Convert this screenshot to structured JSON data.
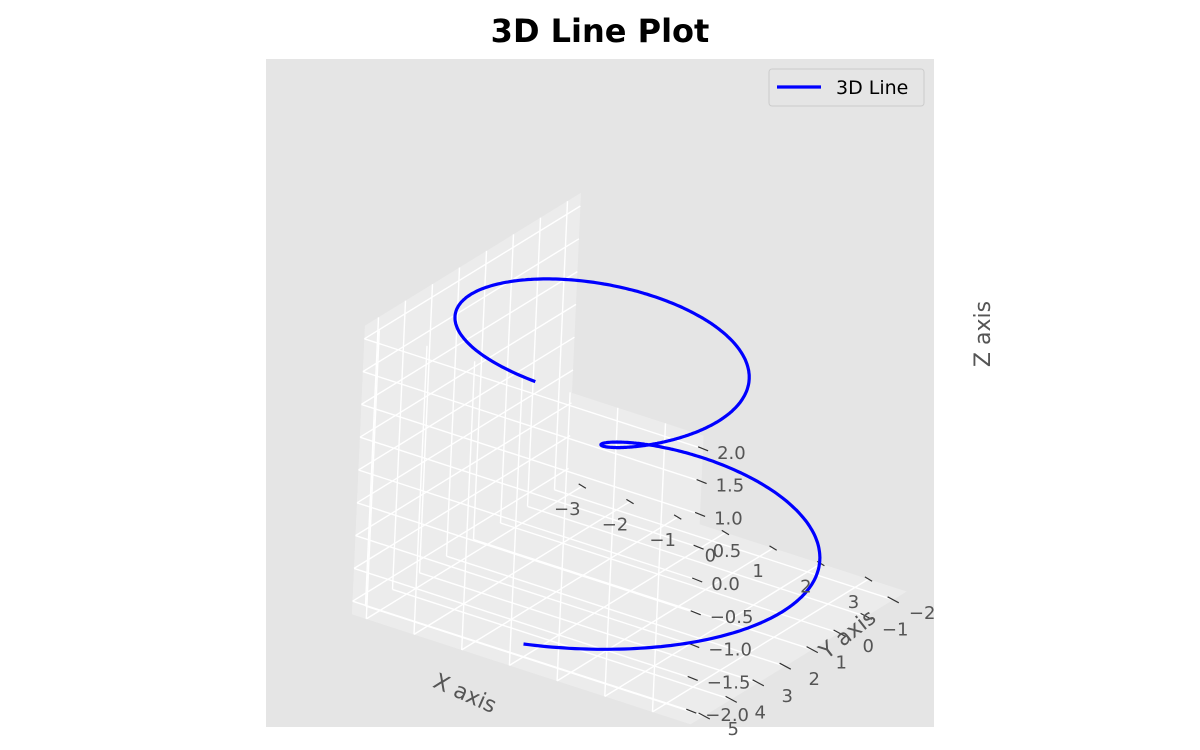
{
  "chart_data": {
    "type": "line",
    "projection": "3d",
    "title": "3D Line Plot",
    "xlabel": "X axis",
    "ylabel": "Y axis",
    "zlabel": "Z axis",
    "xlim": [
      -3.3,
      3.8
    ],
    "ylim": [
      -2.5,
      5.5
    ],
    "zlim": [
      -2.2,
      2.2
    ],
    "xticks": [
      "−3",
      "−2",
      "−1",
      "0",
      "1",
      "2",
      "3"
    ],
    "yticks": [
      "−2",
      "−1",
      "0",
      "1",
      "2",
      "3",
      "4",
      "5"
    ],
    "zticks": [
      "−2.0",
      "−1.5",
      "−1.0",
      "−0.5",
      "0.0",
      "0.5",
      "1.0",
      "1.5",
      "2.0"
    ],
    "grid": true,
    "legend": {
      "placement": "top-right",
      "entries": [
        "3D Line"
      ]
    },
    "series": [
      {
        "name": "3D Line",
        "color": "#0000ff",
        "parametric": {
          "t_range": [
            -6.2832,
            6.2832
          ],
          "x": "(z^2 + 1) * sin(t)",
          "y": "(z^2 + 1) * cos(t)",
          "z": "t / 3.1416"
        }
      }
    ]
  }
}
